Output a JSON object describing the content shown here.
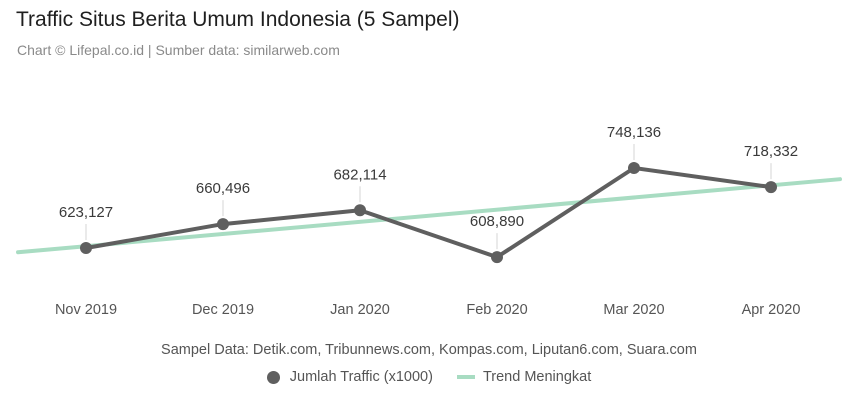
{
  "header": {
    "title": "Traffic Situs Berita Umum Indonesia (5 Sampel)",
    "subtitle": "Chart © Lifepal.co.id | Sumber data: similarweb.com"
  },
  "footer": {
    "note": "Sampel Data: Detik.com, Tribunnews.com, Kompas.com, Liputan6.com, Suara.com"
  },
  "colors": {
    "series_line": "#5f5f5f",
    "trend_line": "#a8dcc2",
    "label_text": "#3a3a3a",
    "tick_text": "#555555"
  },
  "chart_data": {
    "type": "line",
    "categories": [
      "Nov 2019",
      "Dec 2019",
      "Jan 2020",
      "Feb 2020",
      "Mar 2020",
      "Apr 2020"
    ],
    "series": [
      {
        "name": "Jumlah Traffic (x1000)",
        "values": [
          623127,
          660496,
          682114,
          608890,
          748136,
          718332
        ],
        "value_labels": [
          "623,127",
          "660,496",
          "682,114",
          "608,890",
          "748,136",
          "718,332"
        ]
      },
      {
        "name": "Trend Meningkat",
        "kind": "linear-trend"
      }
    ],
    "grid": false,
    "legend": "bottom-center",
    "data_labels": true
  }
}
